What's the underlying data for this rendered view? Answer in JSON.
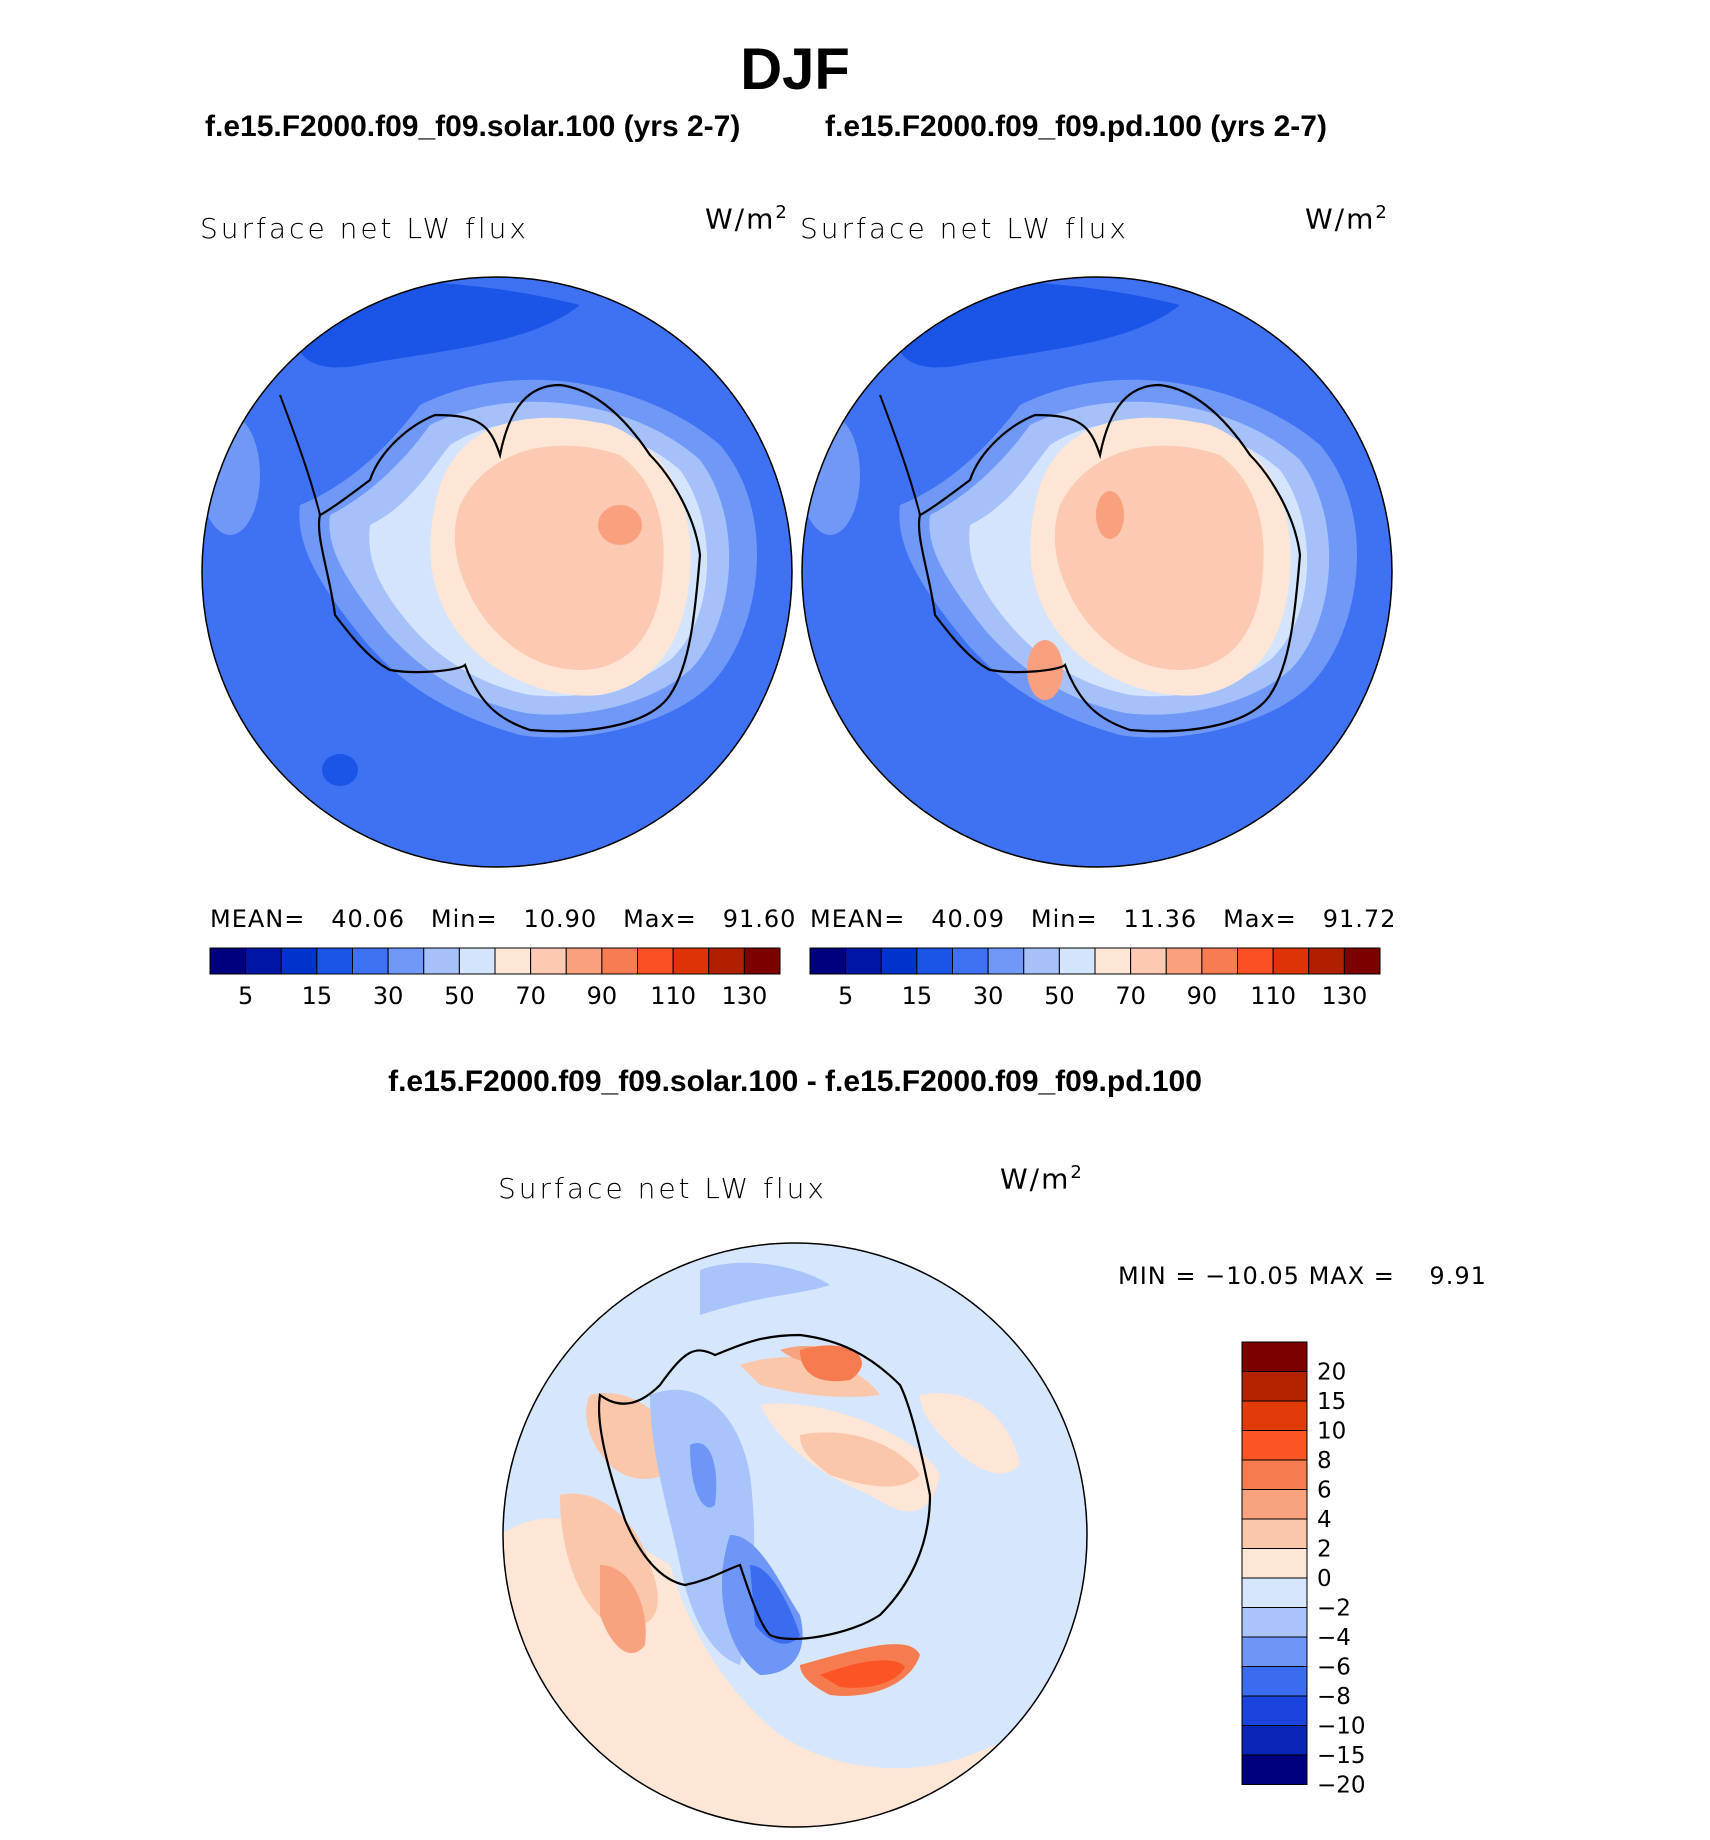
{
  "figure": {
    "season": "DJF",
    "difference_title": "f.e15.F2000.f09_f09.solar.100 - f.e15.F2000.f09_f09.pd.100"
  },
  "colors": {
    "absolute_scale": [
      "#00007d",
      "#0017a5",
      "#0033cc",
      "#1a55e8",
      "#3f72f2",
      "#7098f6",
      "#a6c0fa",
      "#d3e4fc",
      "#fde6d6",
      "#fcc9b2",
      "#f9a07f",
      "#f77b53",
      "#fa4f23",
      "#de3306",
      "#b02000",
      "#7d0000"
    ],
    "difference_scale": [
      "#00007d",
      "#0a24b5",
      "#1a44dd",
      "#3b6cf0",
      "#6e96f6",
      "#a8c4fa",
      "#d6e6fc",
      "#fde6d6",
      "#fbc7ab",
      "#f8a27f",
      "#f67c50",
      "#fb5425",
      "#e03b08",
      "#b42300",
      "#7d0000"
    ],
    "coastline": "#000000"
  },
  "panels": [
    {
      "id": "solar",
      "case_title": "f.e15.F2000.f09_f09.solar.100 (yrs 2-7)",
      "field_label": "Surface net LW flux",
      "units_base": "W/m",
      "units_exp": "2",
      "stats": {
        "mean_label": "MEAN=",
        "mean": "40.06",
        "min_label": "Min=",
        "min": "10.90",
        "max_label": "Max=",
        "max": "91.60"
      },
      "colorbar_ticks": [
        "5",
        "15",
        "30",
        "50",
        "70",
        "90",
        "110",
        "130"
      ]
    },
    {
      "id": "pd",
      "case_title": "f.e15.F2000.f09_f09.pd.100 (yrs 2-7)",
      "field_label": "Surface net LW flux",
      "units_base": "W/m",
      "units_exp": "2",
      "stats": {
        "mean_label": "MEAN=",
        "mean": "40.09",
        "min_label": "Min=",
        "min": "11.36",
        "max_label": "Max=",
        "max": "91.72"
      },
      "colorbar_ticks": [
        "5",
        "15",
        "30",
        "50",
        "70",
        "90",
        "110",
        "130"
      ]
    }
  ],
  "difference": {
    "field_label": "Surface net LW flux",
    "units_base": "W/m",
    "units_exp": "2",
    "min_label": "MIN =",
    "min": "−10.05",
    "max_label": "MAX =",
    "max": "9.91",
    "colorbar_levels": [
      "20",
      "15",
      "10",
      "8",
      "6",
      "4",
      "2",
      "0",
      "−2",
      "−4",
      "−6",
      "−8",
      "−10",
      "−15",
      "−20"
    ]
  }
}
